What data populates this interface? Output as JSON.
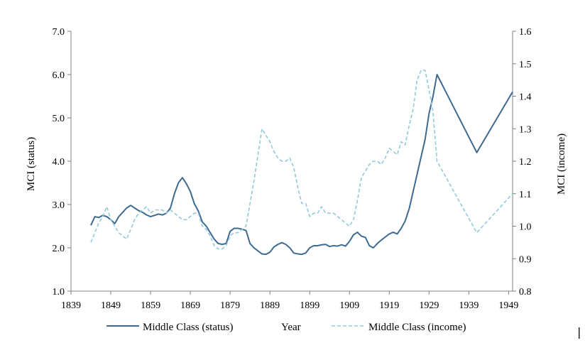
{
  "chart_data": {
    "type": "line",
    "title": "",
    "xlabel": "Year",
    "ylabel_left": "MCI (status)",
    "ylabel_right": "MCI (income)",
    "xlim": [
      1839,
      1950
    ],
    "ylim_left": [
      1.0,
      7.0
    ],
    "ylim_right": [
      0.8,
      1.6
    ],
    "x_ticks": [
      "1839",
      "1849",
      "1859",
      "1869",
      "1879",
      "1889",
      "1899",
      "1909",
      "1919",
      "1929",
      "1939",
      "1949"
    ],
    "y_left_ticks": [
      "1.0",
      "2.0",
      "3.0",
      "4.0",
      "5.0",
      "6.0",
      "7.0"
    ],
    "y_right_ticks": [
      "0.8",
      "0.9",
      "1.0",
      "1.1",
      "1.2",
      "1.3",
      "1.4",
      "1.5",
      "1.6"
    ],
    "grid": false,
    "legend_position": "bottom",
    "colors": {
      "status": "#3d6a91",
      "income": "#93c8dd",
      "axis": "#808080"
    },
    "series": [
      {
        "name": "Middle Class (status)",
        "axis": "left",
        "style": "solid",
        "points": [
          [
            1844,
            2.52
          ],
          [
            1845,
            2.72
          ],
          [
            1846,
            2.7
          ],
          [
            1847,
            2.75
          ],
          [
            1848,
            2.72
          ],
          [
            1849,
            2.65
          ],
          [
            1850,
            2.56
          ],
          [
            1851,
            2.72
          ],
          [
            1852,
            2.82
          ],
          [
            1853,
            2.92
          ],
          [
            1854,
            2.98
          ],
          [
            1855,
            2.92
          ],
          [
            1856,
            2.86
          ],
          [
            1857,
            2.82
          ],
          [
            1858,
            2.76
          ],
          [
            1859,
            2.72
          ],
          [
            1860,
            2.75
          ],
          [
            1861,
            2.78
          ],
          [
            1862,
            2.76
          ],
          [
            1863,
            2.8
          ],
          [
            1864,
            2.92
          ],
          [
            1865,
            3.25
          ],
          [
            1866,
            3.5
          ],
          [
            1867,
            3.62
          ],
          [
            1868,
            3.48
          ],
          [
            1869,
            3.3
          ],
          [
            1870,
            3.02
          ],
          [
            1871,
            2.85
          ],
          [
            1872,
            2.6
          ],
          [
            1873,
            2.5
          ],
          [
            1874,
            2.35
          ],
          [
            1875,
            2.2
          ],
          [
            1876,
            2.1
          ],
          [
            1877,
            2.08
          ],
          [
            1878,
            2.1
          ],
          [
            1879,
            2.38
          ],
          [
            1880,
            2.45
          ],
          [
            1881,
            2.45
          ],
          [
            1882,
            2.43
          ],
          [
            1883,
            2.4
          ],
          [
            1884,
            2.1
          ],
          [
            1885,
            2.0
          ],
          [
            1886,
            1.93
          ],
          [
            1887,
            1.86
          ],
          [
            1888,
            1.85
          ],
          [
            1889,
            1.9
          ],
          [
            1890,
            2.02
          ],
          [
            1891,
            2.08
          ],
          [
            1892,
            2.12
          ],
          [
            1893,
            2.08
          ],
          [
            1894,
            2.0
          ],
          [
            1895,
            1.88
          ],
          [
            1896,
            1.86
          ],
          [
            1897,
            1.85
          ],
          [
            1898,
            1.88
          ],
          [
            1899,
            2.0
          ],
          [
            1900,
            2.05
          ],
          [
            1901,
            2.05
          ],
          [
            1902,
            2.07
          ],
          [
            1903,
            2.08
          ],
          [
            1904,
            2.03
          ],
          [
            1905,
            2.05
          ],
          [
            1906,
            2.04
          ],
          [
            1907,
            2.07
          ],
          [
            1908,
            2.04
          ],
          [
            1909,
            2.15
          ],
          [
            1910,
            2.3
          ],
          [
            1911,
            2.36
          ],
          [
            1912,
            2.27
          ],
          [
            1913,
            2.24
          ],
          [
            1914,
            2.05
          ],
          [
            1915,
            2.0
          ],
          [
            1916,
            2.1
          ],
          [
            1917,
            2.18
          ],
          [
            1918,
            2.25
          ],
          [
            1919,
            2.32
          ],
          [
            1920,
            2.36
          ],
          [
            1921,
            2.32
          ],
          [
            1922,
            2.45
          ],
          [
            1923,
            2.62
          ],
          [
            1924,
            2.9
          ],
          [
            1925,
            3.3
          ],
          [
            1926,
            3.7
          ],
          [
            1927,
            4.1
          ],
          [
            1928,
            4.5
          ],
          [
            1929,
            5.1
          ],
          [
            1930,
            5.5
          ],
          [
            1931,
            6.0
          ],
          [
            1941,
            4.2
          ],
          [
            1950,
            5.6
          ]
        ]
      },
      {
        "name": "Middle Class (income)",
        "axis": "right",
        "style": "dashed",
        "points": [
          [
            1844,
            0.95
          ],
          [
            1845,
            0.98
          ],
          [
            1846,
            1.01
          ],
          [
            1847,
            1.03
          ],
          [
            1848,
            1.06
          ],
          [
            1849,
            1.02
          ],
          [
            1850,
            1.0
          ],
          [
            1851,
            0.98
          ],
          [
            1852,
            0.97
          ],
          [
            1853,
            0.96
          ],
          [
            1854,
            0.99
          ],
          [
            1855,
            1.02
          ],
          [
            1856,
            1.04
          ],
          [
            1857,
            1.05
          ],
          [
            1858,
            1.06
          ],
          [
            1859,
            1.04
          ],
          [
            1860,
            1.05
          ],
          [
            1861,
            1.05
          ],
          [
            1862,
            1.05
          ],
          [
            1863,
            1.04
          ],
          [
            1864,
            1.05
          ],
          [
            1865,
            1.04
          ],
          [
            1866,
            1.03
          ],
          [
            1867,
            1.02
          ],
          [
            1868,
            1.02
          ],
          [
            1869,
            1.03
          ],
          [
            1870,
            1.04
          ],
          [
            1871,
            1.04
          ],
          [
            1872,
            1.0
          ],
          [
            1873,
            0.99
          ],
          [
            1874,
            0.97
          ],
          [
            1875,
            0.94
          ],
          [
            1876,
            0.93
          ],
          [
            1877,
            0.93
          ],
          [
            1878,
            0.94
          ],
          [
            1879,
            0.97
          ],
          [
            1880,
            0.98
          ],
          [
            1881,
            0.98
          ],
          [
            1882,
            0.99
          ],
          [
            1883,
            1.0
          ],
          [
            1884,
            1.07
          ],
          [
            1885,
            1.14
          ],
          [
            1886,
            1.22
          ],
          [
            1887,
            1.3
          ],
          [
            1888,
            1.28
          ],
          [
            1889,
            1.26
          ],
          [
            1890,
            1.23
          ],
          [
            1891,
            1.21
          ],
          [
            1892,
            1.2
          ],
          [
            1893,
            1.2
          ],
          [
            1894,
            1.21
          ],
          [
            1895,
            1.18
          ],
          [
            1896,
            1.12
          ],
          [
            1897,
            1.07
          ],
          [
            1898,
            1.07
          ],
          [
            1899,
            1.03
          ],
          [
            1900,
            1.04
          ],
          [
            1901,
            1.04
          ],
          [
            1902,
            1.06
          ],
          [
            1903,
            1.04
          ],
          [
            1904,
            1.04
          ],
          [
            1905,
            1.04
          ],
          [
            1906,
            1.03
          ],
          [
            1907,
            1.02
          ],
          [
            1908,
            1.01
          ],
          [
            1909,
            1.0
          ],
          [
            1910,
            1.02
          ],
          [
            1911,
            1.08
          ],
          [
            1912,
            1.15
          ],
          [
            1913,
            1.17
          ],
          [
            1914,
            1.19
          ],
          [
            1915,
            1.2
          ],
          [
            1916,
            1.2
          ],
          [
            1917,
            1.19
          ],
          [
            1918,
            1.21
          ],
          [
            1919,
            1.24
          ],
          [
            1920,
            1.23
          ],
          [
            1921,
            1.22
          ],
          [
            1922,
            1.26
          ],
          [
            1923,
            1.25
          ],
          [
            1924,
            1.31
          ],
          [
            1925,
            1.36
          ],
          [
            1926,
            1.45
          ],
          [
            1927,
            1.48
          ],
          [
            1928,
            1.48
          ],
          [
            1929,
            1.42
          ],
          [
            1930,
            1.35
          ],
          [
            1931,
            1.2
          ],
          [
            1941,
            0.98
          ],
          [
            1950,
            1.1
          ]
        ]
      }
    ],
    "legend": [
      {
        "label": "Middle Class (status)",
        "series": 0
      },
      {
        "label": "Year",
        "series": null
      },
      {
        "label": "Middle Class (income)",
        "series": 1
      }
    ]
  }
}
